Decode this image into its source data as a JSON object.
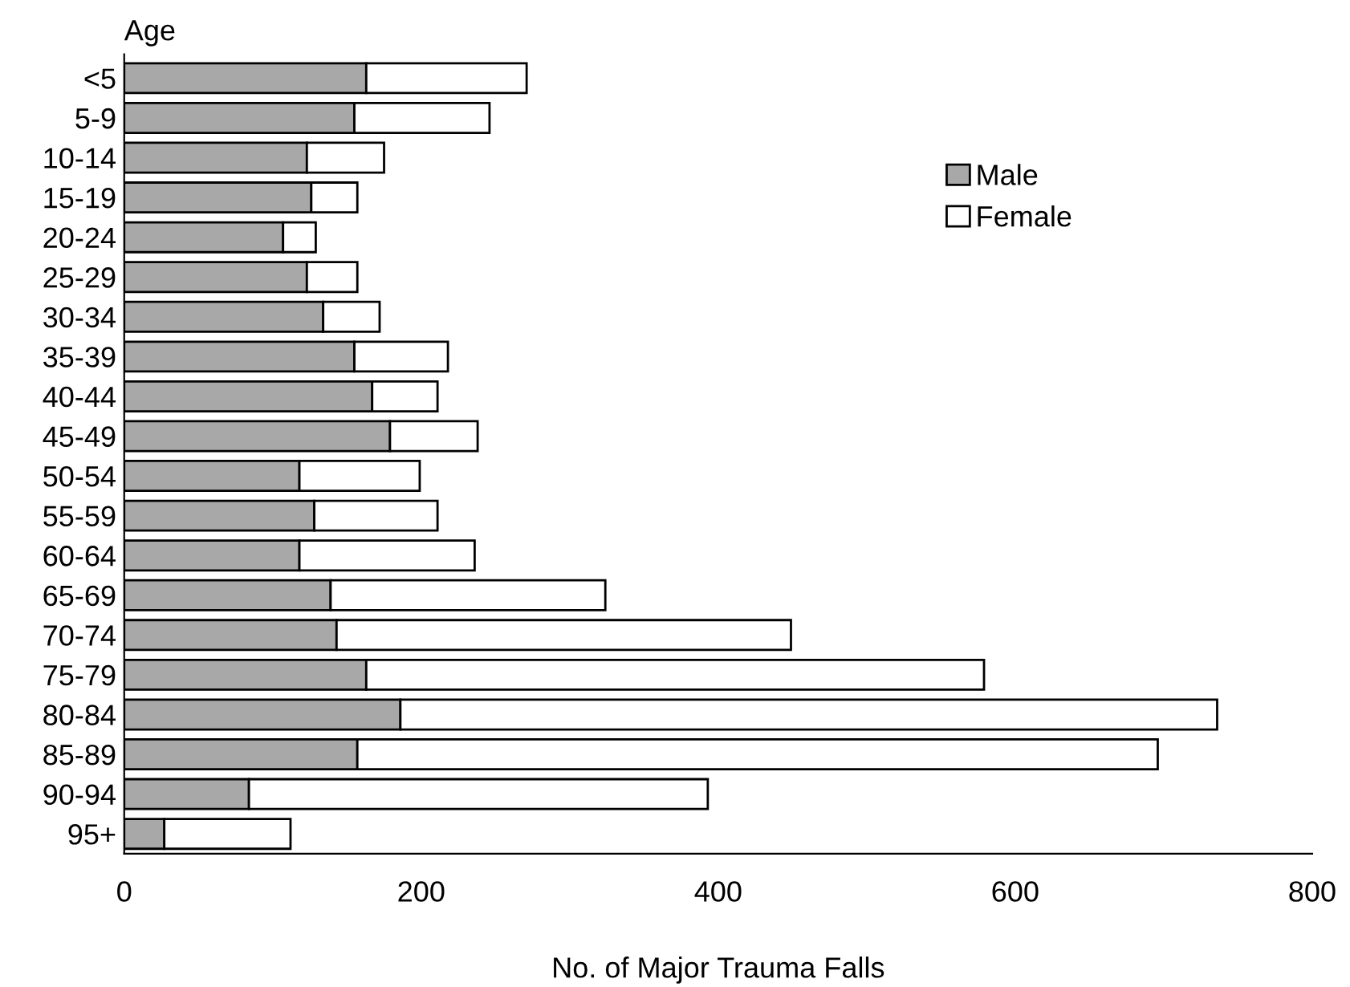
{
  "chart_data": {
    "type": "bar",
    "orientation": "horizontal",
    "stacked": true,
    "xlabel": "No. of Major Trauma Falls",
    "ylabel": "Age",
    "categories": [
      "<5",
      "5-9",
      "10-14",
      "15-19",
      "20-24",
      "25-29",
      "30-34",
      "35-39",
      "40-44",
      "45-49",
      "50-54",
      "55-59",
      "60-64",
      "65-69",
      "70-74",
      "75-79",
      "80-84",
      "85-89",
      "90-94",
      "95+"
    ],
    "series": [
      {
        "name": "Male",
        "color": "#a8a8a8",
        "values": [
          163,
          155,
          123,
          126,
          107,
          123,
          134,
          155,
          167,
          179,
          118,
          128,
          118,
          139,
          143,
          163,
          186,
          157,
          84,
          27
        ]
      },
      {
        "name": "Female",
        "color": "#ffffff",
        "values": [
          108,
          91,
          52,
          31,
          22,
          34,
          38,
          63,
          44,
          59,
          81,
          83,
          118,
          185,
          306,
          416,
          550,
          539,
          309,
          85
        ]
      }
    ],
    "xlim": [
      0,
      800
    ],
    "xticks": [
      0,
      200,
      400,
      600,
      800
    ],
    "grid": false,
    "legend": "right"
  }
}
